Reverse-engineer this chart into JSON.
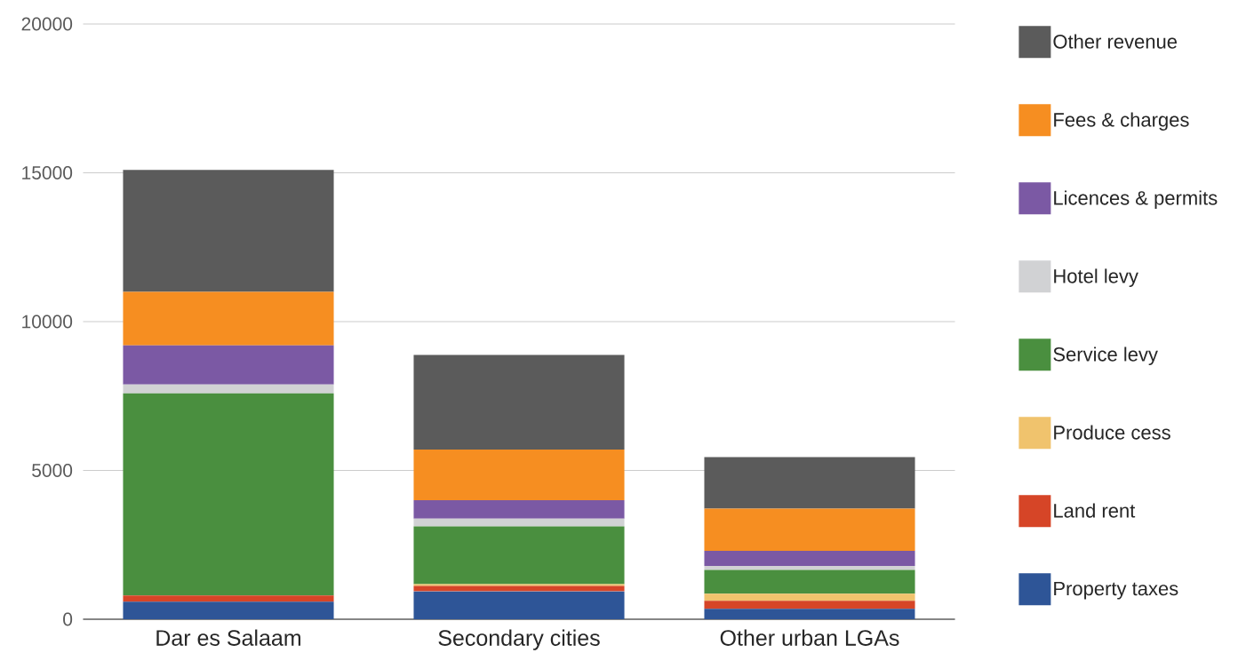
{
  "chart_data": {
    "type": "bar",
    "stacked": true,
    "grid": "y",
    "legend": "right",
    "categories": [
      "Dar es Salaam",
      "Secondary cities",
      "Other urban LGAs"
    ],
    "ylim": [
      0,
      20000
    ],
    "yticks": [
      0,
      5000,
      10000,
      15000,
      20000
    ],
    "series": [
      {
        "name": "Property taxes",
        "color": "#2e5597",
        "values": [
          590,
          940,
          350
        ]
      },
      {
        "name": "Land rent",
        "color": "#d64527",
        "values": [
          210,
          180,
          270
        ]
      },
      {
        "name": "Produce cess",
        "color": "#f0c36d",
        "values": [
          0,
          60,
          240
        ]
      },
      {
        "name": "Service levy",
        "color": "#4a8f3f",
        "values": [
          6790,
          1940,
          800
        ]
      },
      {
        "name": "Hotel levy",
        "color": "#d1d2d4",
        "values": [
          300,
          260,
          130
        ]
      },
      {
        "name": "Licences & permits",
        "color": "#7b59a4",
        "values": [
          1310,
          620,
          510
        ]
      },
      {
        "name": "Fees & charges",
        "color": "#f68e21",
        "values": [
          1800,
          1700,
          1420
        ]
      },
      {
        "name": "Other revenue",
        "color": "#5b5b5b",
        "values": [
          4100,
          3180,
          1730
        ]
      }
    ]
  }
}
